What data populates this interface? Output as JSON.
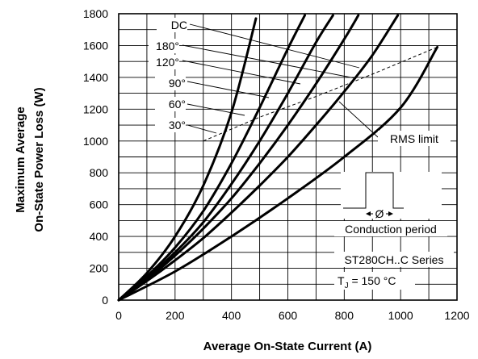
{
  "chart_data": {
    "type": "line",
    "title": "",
    "xlabel": "Average On-State Current (A)",
    "ylabel_lines": [
      "Maximum Average",
      "On-State Power Loss (W)"
    ],
    "xlim": [
      0,
      1200
    ],
    "ylim": [
      0,
      1800
    ],
    "xticks": [
      "0",
      "200",
      "400",
      "600",
      "800",
      "1000",
      "1200"
    ],
    "yticks": [
      "0",
      "200",
      "400",
      "600",
      "800",
      "1000",
      "1200",
      "1400",
      "1600",
      "1800"
    ],
    "grid": true,
    "series": [
      {
        "name": "30°",
        "points": [
          [
            0,
            0
          ],
          [
            100,
            170
          ],
          [
            200,
            400
          ],
          [
            300,
            720
          ],
          [
            400,
            1180
          ],
          [
            487,
            1770
          ]
        ]
      },
      {
        "name": "60°",
        "points": [
          [
            0,
            0
          ],
          [
            100,
            150
          ],
          [
            200,
            330
          ],
          [
            300,
            560
          ],
          [
            400,
            860
          ],
          [
            500,
            1210
          ],
          [
            600,
            1580
          ],
          [
            660,
            1790
          ]
        ]
      },
      {
        "name": "90°",
        "points": [
          [
            0,
            0
          ],
          [
            100,
            140
          ],
          [
            200,
            300
          ],
          [
            300,
            490
          ],
          [
            400,
            730
          ],
          [
            500,
            1000
          ],
          [
            600,
            1300
          ],
          [
            700,
            1620
          ],
          [
            760,
            1790
          ]
        ]
      },
      {
        "name": "120°",
        "points": [
          [
            0,
            0
          ],
          [
            100,
            130
          ],
          [
            200,
            280
          ],
          [
            300,
            450
          ],
          [
            400,
            640
          ],
          [
            500,
            860
          ],
          [
            600,
            1100
          ],
          [
            700,
            1360
          ],
          [
            800,
            1640
          ],
          [
            850,
            1790
          ]
        ]
      },
      {
        "name": "180°",
        "points": [
          [
            0,
            0
          ],
          [
            100,
            120
          ],
          [
            200,
            250
          ],
          [
            300,
            390
          ],
          [
            400,
            550
          ],
          [
            500,
            720
          ],
          [
            600,
            900
          ],
          [
            700,
            1100
          ],
          [
            800,
            1310
          ],
          [
            900,
            1540
          ],
          [
            990,
            1790
          ]
        ]
      },
      {
        "name": "DC",
        "points": [
          [
            0,
            0
          ],
          [
            200,
            180
          ],
          [
            400,
            400
          ],
          [
            600,
            640
          ],
          [
            800,
            900
          ],
          [
            1000,
            1210
          ],
          [
            1130,
            1590
          ]
        ]
      }
    ],
    "rms_limit": {
      "label": "RMS limit",
      "points": [
        [
          300,
          1000
        ],
        [
          500,
          1150
        ],
        [
          700,
          1280
        ],
        [
          900,
          1420
        ],
        [
          1130,
          1590
        ]
      ]
    },
    "inset_labels": {
      "phi": "Ø",
      "conduction": "Conduction period",
      "series": "ST280CH..C Series",
      "tj_main": "T",
      "tj_sub": "J",
      "tj_value": " = 150 °C"
    }
  }
}
